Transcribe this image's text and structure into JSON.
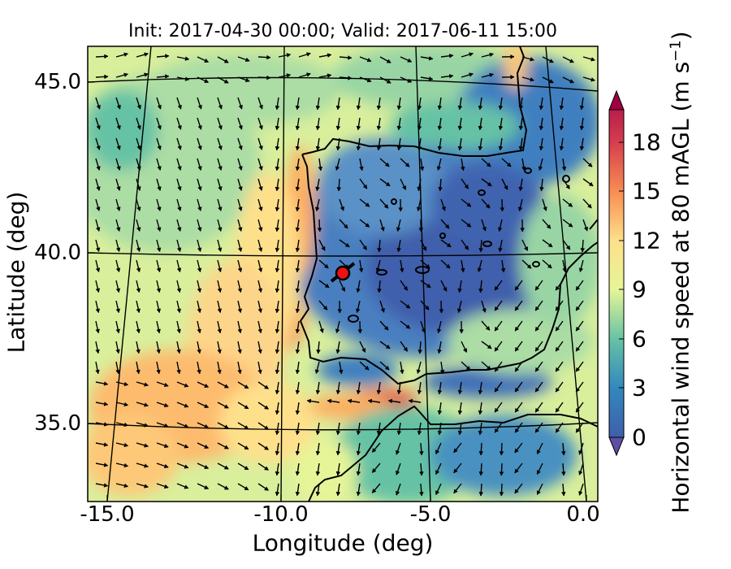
{
  "title": "Init: 2017-04-30 00:00; Valid: 2017-06-11 15:00",
  "axes": {
    "xlabel": "Longitude (deg)",
    "ylabel": "Latitude (deg)",
    "xticks": [
      "-15.0",
      "-10.0",
      "-5.0",
      "0.0"
    ],
    "yticks": [
      "45.0",
      "40.0",
      "35.0"
    ]
  },
  "colorbar": {
    "label": "Horizontal wind speed at 80 mAGL (m s",
    "label_sup": "−1",
    "label_end": ")",
    "ticks": [
      "0",
      "3",
      "6",
      "9",
      "12",
      "15",
      "18"
    ],
    "range": [
      0,
      20
    ],
    "extend": "both",
    "colormap": [
      "#5e4fa2",
      "#3f5fac",
      "#3288bd",
      "#4aa1b4",
      "#66c2a5",
      "#99d5a4",
      "#abdda4",
      "#cbe99e",
      "#e6f598",
      "#f3faad",
      "#fee08b",
      "#fdc877",
      "#fdae61",
      "#f88d52",
      "#f46d43",
      "#e45a49",
      "#d53e4f",
      "#b81e4a",
      "#9e0142"
    ]
  },
  "map": {
    "region": "Iberian Peninsula",
    "marker_color": "#ee1111",
    "marker_location": "Portugal, near 39.3N -7.7W"
  }
}
